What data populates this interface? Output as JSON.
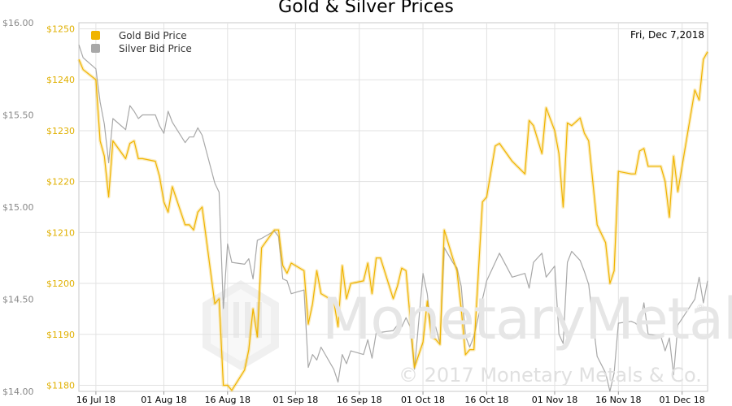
{
  "chart_data": {
    "type": "line",
    "title": "Gold & Silver Prices",
    "date_label": "Fri, Dec 7,2018",
    "watermark": "MonetaryMetals",
    "copyright": "© 2017 Monetary Metals & Co.",
    "legend_position": "top-left",
    "grid": true,
    "x_ticks": [
      "16 Jul 18",
      "01 Aug 18",
      "16 Aug 18",
      "01 Sep 18",
      "16 Sep 18",
      "01 Oct 18",
      "16 Oct 18",
      "01 Nov 18",
      "16 Nov 18",
      "01 Dec 18"
    ],
    "x_range": [
      "2018-07-12",
      "2018-12-07"
    ],
    "y_left": {
      "ticks": [
        "$16.00",
        "$15.50",
        "$15.00",
        "$14.50",
        "$14.00"
      ],
      "range": [
        14.0,
        16.0
      ],
      "color": "#888888"
    },
    "y_right": {
      "ticks": [
        "$1250",
        "$1240",
        "$1230",
        "$1220",
        "$1210",
        "$1200",
        "$1190",
        "$1180"
      ],
      "range": [
        1178.8,
        1251.2
      ],
      "color": "#e0b000"
    },
    "series": [
      {
        "name": "Gold Bid Price",
        "color": "#f0b400",
        "axis": "right",
        "points": [
          [
            "2018-07-12",
            1244.0
          ],
          [
            "2018-07-13",
            1242.0
          ],
          [
            "2018-07-16",
            1240.0
          ],
          [
            "2018-07-17",
            1228.0
          ],
          [
            "2018-07-18",
            1225.0
          ],
          [
            "2018-07-19",
            1217.0
          ],
          [
            "2018-07-20",
            1228.0
          ],
          [
            "2018-07-23",
            1224.5
          ],
          [
            "2018-07-24",
            1227.5
          ],
          [
            "2018-07-25",
            1228.0
          ],
          [
            "2018-07-26",
            1224.5
          ],
          [
            "2018-07-27",
            1224.5
          ],
          [
            "2018-07-30",
            1224.0
          ],
          [
            "2018-07-31",
            1221.0
          ],
          [
            "2018-08-01",
            1216.0
          ],
          [
            "2018-08-02",
            1214.0
          ],
          [
            "2018-08-03",
            1219.0
          ],
          [
            "2018-08-06",
            1211.5
          ],
          [
            "2018-08-07",
            1211.5
          ],
          [
            "2018-08-08",
            1210.5
          ],
          [
            "2018-08-09",
            1214.0
          ],
          [
            "2018-08-10",
            1215.0
          ],
          [
            "2018-08-13",
            1196.0
          ],
          [
            "2018-08-14",
            1197.0
          ],
          [
            "2018-08-15",
            1180.0
          ],
          [
            "2018-08-16",
            1180.0
          ],
          [
            "2018-08-17",
            1179.0
          ],
          [
            "2018-08-20",
            1183.0
          ],
          [
            "2018-08-21",
            1187.0
          ],
          [
            "2018-08-22",
            1195.0
          ],
          [
            "2018-08-23",
            1189.5
          ],
          [
            "2018-08-24",
            1207.0
          ],
          [
            "2018-08-27",
            1210.5
          ],
          [
            "2018-08-28",
            1210.5
          ],
          [
            "2018-08-29",
            1203.5
          ],
          [
            "2018-08-30",
            1202.0
          ],
          [
            "2018-08-31",
            1204.0
          ],
          [
            "2018-09-03",
            1202.5
          ],
          [
            "2018-09-04",
            1192.0
          ],
          [
            "2018-09-05",
            1196.0
          ],
          [
            "2018-09-06",
            1202.5
          ],
          [
            "2018-09-07",
            1198.0
          ],
          [
            "2018-09-10",
            1196.5
          ],
          [
            "2018-09-11",
            1191.5
          ],
          [
            "2018-09-12",
            1203.5
          ],
          [
            "2018-09-13",
            1197.0
          ],
          [
            "2018-09-14",
            1200.0
          ],
          [
            "2018-09-17",
            1200.5
          ],
          [
            "2018-09-18",
            1204.0
          ],
          [
            "2018-09-19",
            1198.0
          ],
          [
            "2018-09-20",
            1205.0
          ],
          [
            "2018-09-21",
            1205.0
          ],
          [
            "2018-09-24",
            1197.0
          ],
          [
            "2018-09-25",
            1199.5
          ],
          [
            "2018-09-26",
            1203.0
          ],
          [
            "2018-09-27",
            1202.5
          ],
          [
            "2018-09-28",
            1193.0
          ],
          [
            "2018-09-29",
            1183.5
          ],
          [
            "2018-10-01",
            1188.5
          ],
          [
            "2018-10-02",
            1196.5
          ],
          [
            "2018-10-03",
            1189.5
          ],
          [
            "2018-10-04",
            1189.0
          ],
          [
            "2018-10-05",
            1188.0
          ],
          [
            "2018-10-06",
            1210.5
          ],
          [
            "2018-10-08",
            1205.0
          ],
          [
            "2018-10-09",
            1202.5
          ],
          [
            "2018-10-10",
            1195.0
          ],
          [
            "2018-10-11",
            1186.0
          ],
          [
            "2018-10-12",
            1187.0
          ],
          [
            "2018-10-13",
            1187.0
          ],
          [
            "2018-10-15",
            1216.0
          ],
          [
            "2018-10-16",
            1217.0
          ],
          [
            "2018-10-18",
            1227.0
          ],
          [
            "2018-10-19",
            1227.5
          ],
          [
            "2018-10-22",
            1224.0
          ],
          [
            "2018-10-25",
            1221.5
          ],
          [
            "2018-10-26",
            1232.0
          ],
          [
            "2018-10-27",
            1231.0
          ],
          [
            "2018-10-29",
            1225.5
          ],
          [
            "2018-10-30",
            1234.5
          ],
          [
            "2018-11-01",
            1230.0
          ],
          [
            "2018-11-02",
            1225.5
          ],
          [
            "2018-11-03",
            1215.0
          ],
          [
            "2018-11-04",
            1231.5
          ],
          [
            "2018-11-05",
            1231.0
          ],
          [
            "2018-11-07",
            1232.5
          ],
          [
            "2018-11-08",
            1229.5
          ],
          [
            "2018-11-09",
            1228.0
          ],
          [
            "2018-11-11",
            1211.5
          ],
          [
            "2018-11-13",
            1208.0
          ],
          [
            "2018-11-14",
            1200.0
          ],
          [
            "2018-11-15",
            1202.5
          ],
          [
            "2018-11-16",
            1222.0
          ],
          [
            "2018-11-19",
            1221.5
          ],
          [
            "2018-11-20",
            1221.5
          ],
          [
            "2018-11-21",
            1226.0
          ],
          [
            "2018-11-22",
            1226.5
          ],
          [
            "2018-11-23",
            1223.0
          ],
          [
            "2018-11-26",
            1223.0
          ],
          [
            "2018-11-27",
            1220.0
          ],
          [
            "2018-11-28",
            1213.0
          ],
          [
            "2018-11-29",
            1225.0
          ],
          [
            "2018-11-30",
            1218.0
          ],
          [
            "2018-12-04",
            1238.0
          ],
          [
            "2018-12-05",
            1236.0
          ],
          [
            "2018-12-06",
            1244.0
          ],
          [
            "2018-12-07",
            1245.5
          ]
        ]
      },
      {
        "name": "Silver Bid Price",
        "color": "#a8a8a8",
        "axis": "left",
        "points": [
          [
            "2018-07-12",
            15.88
          ],
          [
            "2018-07-13",
            15.81
          ],
          [
            "2018-07-16",
            15.75
          ],
          [
            "2018-07-17",
            15.57
          ],
          [
            "2018-07-18",
            15.45
          ],
          [
            "2018-07-19",
            15.24
          ],
          [
            "2018-07-20",
            15.48
          ],
          [
            "2018-07-23",
            15.42
          ],
          [
            "2018-07-24",
            15.55
          ],
          [
            "2018-07-25",
            15.52
          ],
          [
            "2018-07-26",
            15.48
          ],
          [
            "2018-07-27",
            15.5
          ],
          [
            "2018-07-30",
            15.5
          ],
          [
            "2018-07-31",
            15.44
          ],
          [
            "2018-08-01",
            15.4
          ],
          [
            "2018-08-02",
            15.52
          ],
          [
            "2018-08-03",
            15.46
          ],
          [
            "2018-08-06",
            15.35
          ],
          [
            "2018-08-07",
            15.38
          ],
          [
            "2018-08-08",
            15.38
          ],
          [
            "2018-08-09",
            15.43
          ],
          [
            "2018-08-10",
            15.39
          ],
          [
            "2018-08-13",
            15.13
          ],
          [
            "2018-08-14",
            15.08
          ],
          [
            "2018-08-15",
            14.45
          ],
          [
            "2018-08-16",
            14.8
          ],
          [
            "2018-08-17",
            14.7
          ],
          [
            "2018-08-20",
            14.69
          ],
          [
            "2018-08-21",
            14.72
          ],
          [
            "2018-08-22",
            14.61
          ],
          [
            "2018-08-23",
            14.82
          ],
          [
            "2018-08-24",
            14.83
          ],
          [
            "2018-08-27",
            14.87
          ],
          [
            "2018-08-28",
            14.84
          ],
          [
            "2018-08-29",
            14.61
          ],
          [
            "2018-08-30",
            14.6
          ],
          [
            "2018-08-31",
            14.53
          ],
          [
            "2018-09-03",
            14.55
          ],
          [
            "2018-09-04",
            14.13
          ],
          [
            "2018-09-05",
            14.2
          ],
          [
            "2018-09-06",
            14.17
          ],
          [
            "2018-09-07",
            14.24
          ],
          [
            "2018-09-10",
            14.12
          ],
          [
            "2018-09-11",
            14.05
          ],
          [
            "2018-09-12",
            14.2
          ],
          [
            "2018-09-13",
            14.15
          ],
          [
            "2018-09-14",
            14.22
          ],
          [
            "2018-09-17",
            14.2
          ],
          [
            "2018-09-18",
            14.28
          ],
          [
            "2018-09-19",
            14.18
          ],
          [
            "2018-09-20",
            14.32
          ],
          [
            "2018-09-21",
            14.32
          ],
          [
            "2018-09-24",
            14.33
          ],
          [
            "2018-09-25",
            14.36
          ],
          [
            "2018-09-26",
            14.35
          ],
          [
            "2018-09-27",
            14.4
          ],
          [
            "2018-09-28",
            14.35
          ],
          [
            "2018-09-29",
            14.12
          ],
          [
            "2018-10-01",
            14.64
          ],
          [
            "2018-10-02",
            14.53
          ],
          [
            "2018-10-03",
            14.31
          ],
          [
            "2018-10-04",
            14.35
          ],
          [
            "2018-10-05",
            14.26
          ],
          [
            "2018-10-06",
            14.78
          ],
          [
            "2018-10-08",
            14.7
          ],
          [
            "2018-10-09",
            14.67
          ],
          [
            "2018-10-10",
            14.57
          ],
          [
            "2018-10-11",
            14.3
          ],
          [
            "2018-10-12",
            14.24
          ],
          [
            "2018-10-13",
            14.3
          ],
          [
            "2018-10-15",
            14.5
          ],
          [
            "2018-10-16",
            14.6
          ],
          [
            "2018-10-18",
            14.7
          ],
          [
            "2018-10-19",
            14.75
          ],
          [
            "2018-10-22",
            14.62
          ],
          [
            "2018-10-25",
            14.64
          ],
          [
            "2018-10-26",
            14.56
          ],
          [
            "2018-10-27",
            14.7
          ],
          [
            "2018-10-29",
            14.75
          ],
          [
            "2018-10-30",
            14.62
          ],
          [
            "2018-11-01",
            14.68
          ],
          [
            "2018-11-02",
            14.31
          ],
          [
            "2018-11-03",
            14.26
          ],
          [
            "2018-11-04",
            14.7
          ],
          [
            "2018-11-05",
            14.76
          ],
          [
            "2018-11-07",
            14.71
          ],
          [
            "2018-11-08",
            14.65
          ],
          [
            "2018-11-09",
            14.58
          ],
          [
            "2018-11-11",
            14.19
          ],
          [
            "2018-11-13",
            14.1
          ],
          [
            "2018-11-14",
            14.0
          ],
          [
            "2018-11-15",
            14.1
          ],
          [
            "2018-11-16",
            14.37
          ],
          [
            "2018-11-19",
            14.38
          ],
          [
            "2018-11-20",
            14.37
          ],
          [
            "2018-11-21",
            14.35
          ],
          [
            "2018-11-22",
            14.48
          ],
          [
            "2018-11-23",
            14.31
          ],
          [
            "2018-11-26",
            14.3
          ],
          [
            "2018-11-27",
            14.22
          ],
          [
            "2018-11-28",
            14.29
          ],
          [
            "2018-11-29",
            14.09
          ],
          [
            "2018-11-30",
            14.36
          ],
          [
            "2018-12-04",
            14.5
          ],
          [
            "2018-12-05",
            14.62
          ],
          [
            "2018-12-06",
            14.48
          ],
          [
            "2018-12-07",
            14.6
          ]
        ]
      }
    ]
  }
}
